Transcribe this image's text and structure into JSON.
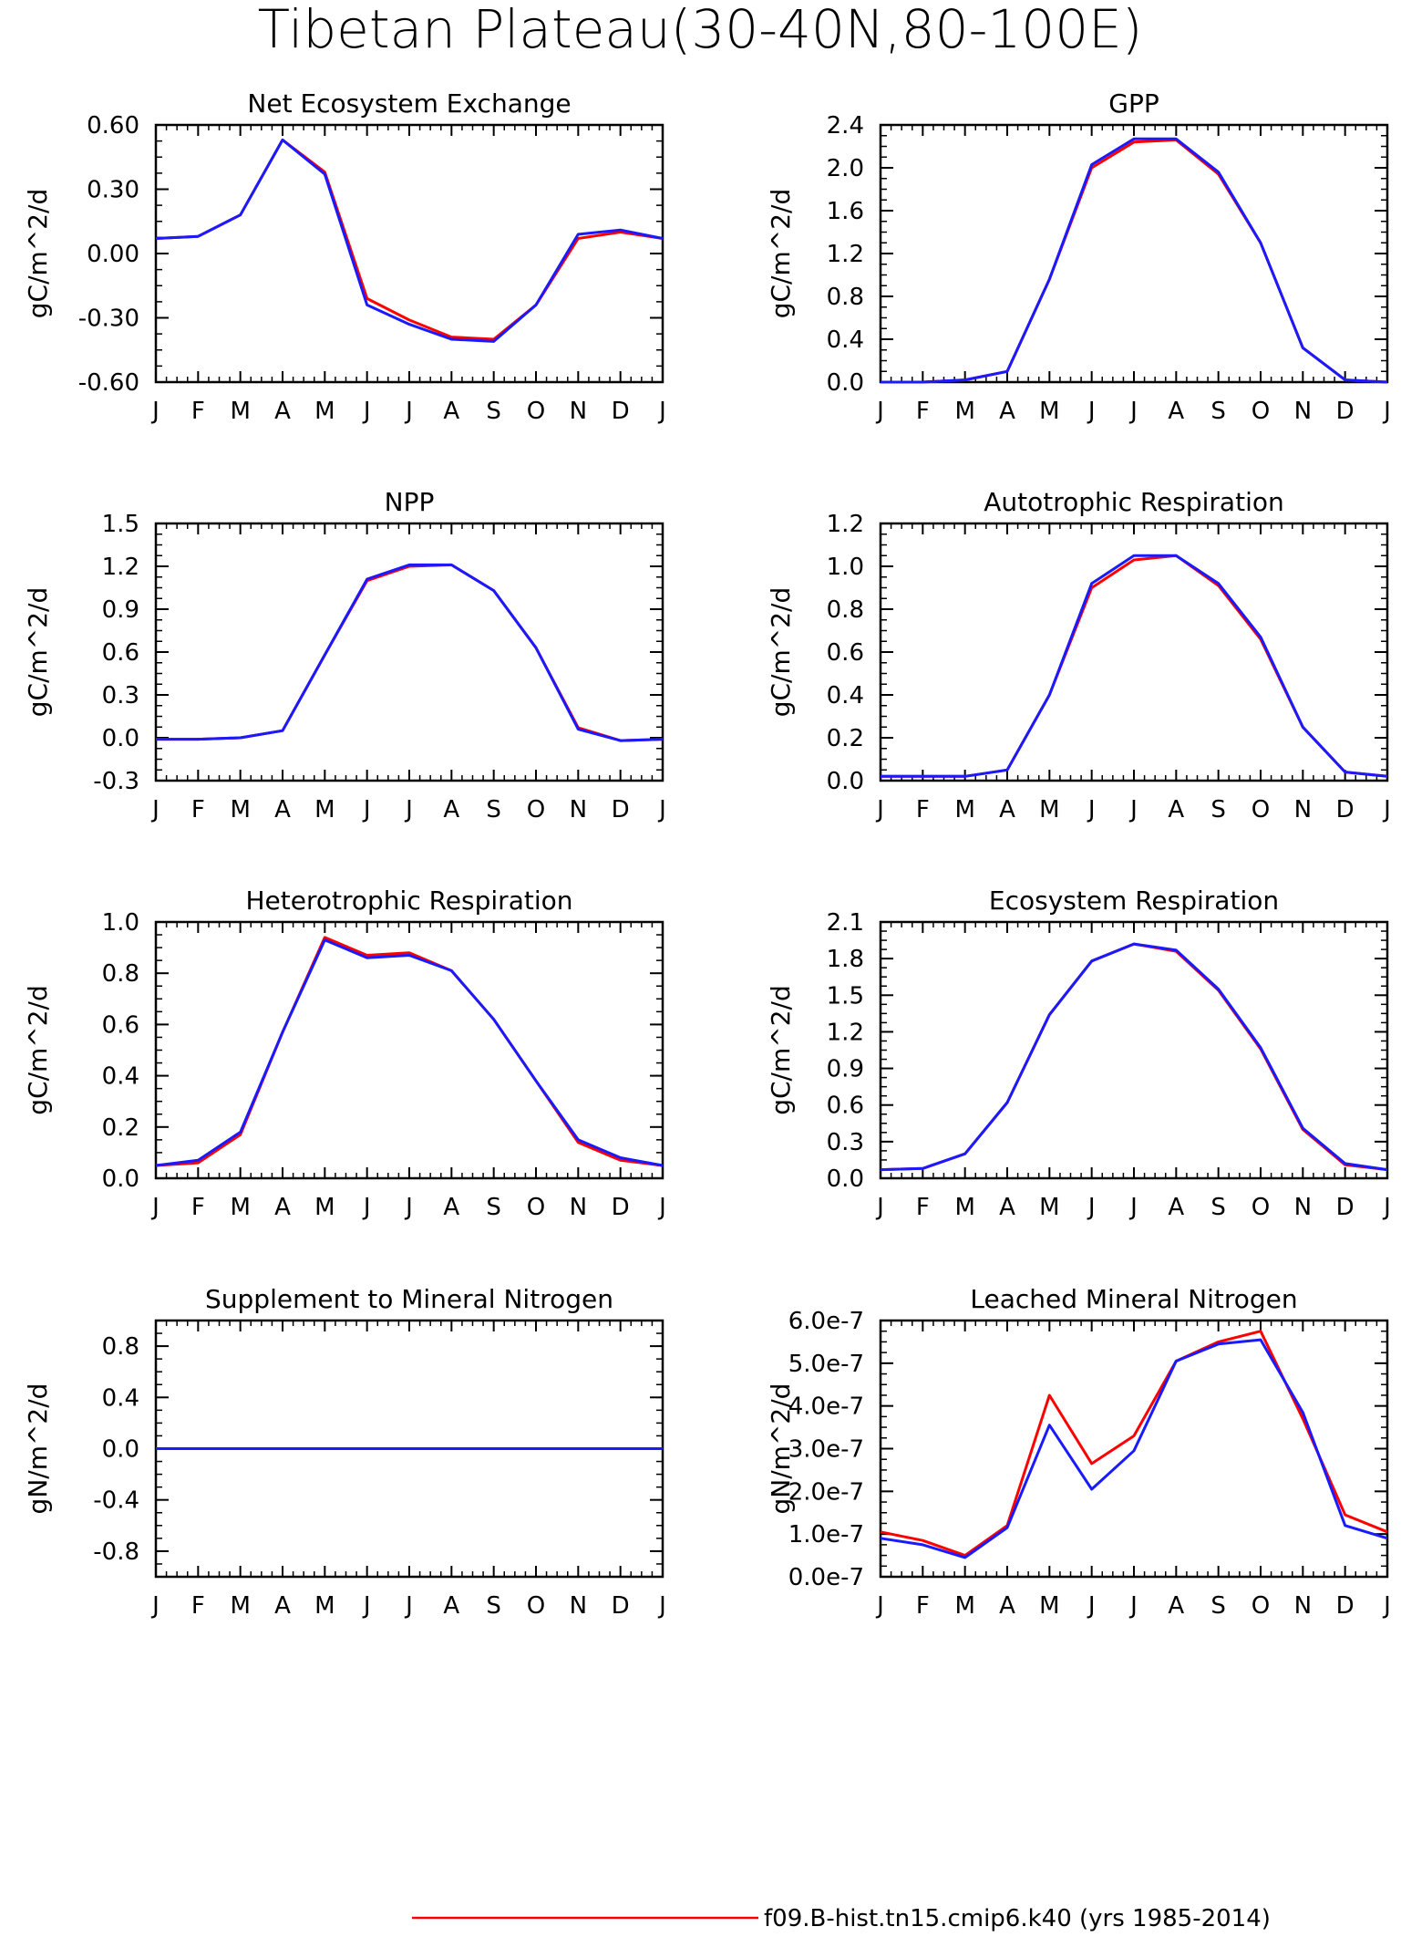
{
  "title": "Tibetan Plateau(30-40N,80-100E)",
  "months": [
    "J",
    "F",
    "M",
    "A",
    "M",
    "J",
    "J",
    "A",
    "S",
    "O",
    "N",
    "D",
    "J"
  ],
  "colors": {
    "red": "#ff0000",
    "blue": "#1a1aff",
    "axis": "#000000"
  },
  "legend": {
    "label": "f09.B-hist.tn15.cmip6.k40 (yrs 1985-2014)",
    "color": "#ff0000"
  },
  "chart_data": [
    {
      "type": "line",
      "title": "Net Ecosystem Exchange",
      "ylabel": "gC/m^2/d",
      "ylim": [
        -0.6,
        0.6
      ],
      "yticks": [
        "0.60",
        "0.30",
        "0.00",
        "-0.30",
        "-0.60"
      ],
      "ytick_values": [
        0.6,
        0.3,
        0.0,
        -0.3,
        -0.6
      ],
      "series": [
        {
          "color": "#ff0000",
          "values": [
            0.07,
            0.08,
            0.18,
            0.53,
            0.38,
            -0.21,
            -0.31,
            -0.39,
            -0.4,
            -0.24,
            0.07,
            0.1,
            0.07
          ]
        },
        {
          "color": "#1a1aff",
          "values": [
            0.07,
            0.08,
            0.18,
            0.53,
            0.37,
            -0.24,
            -0.33,
            -0.4,
            -0.41,
            -0.24,
            0.09,
            0.11,
            0.07
          ]
        }
      ]
    },
    {
      "type": "line",
      "title": "GPP",
      "ylabel": "gC/m^2/d",
      "ylim": [
        0.0,
        2.4
      ],
      "yticks": [
        "2.4",
        "2.0",
        "1.6",
        "1.2",
        "0.8",
        "0.4",
        "0.0"
      ],
      "ytick_values": [
        2.4,
        2.0,
        1.6,
        1.2,
        0.8,
        0.4,
        0.0
      ],
      "series": [
        {
          "color": "#ff0000",
          "values": [
            0.0,
            0.0,
            0.02,
            0.1,
            0.96,
            2.0,
            2.24,
            2.26,
            1.94,
            1.3,
            0.32,
            0.02,
            0.0
          ]
        },
        {
          "color": "#1a1aff",
          "values": [
            0.0,
            0.0,
            0.02,
            0.1,
            0.96,
            2.03,
            2.27,
            2.27,
            1.96,
            1.3,
            0.32,
            0.02,
            0.0
          ]
        }
      ]
    },
    {
      "type": "line",
      "title": "NPP",
      "ylabel": "gC/m^2/d",
      "ylim": [
        -0.3,
        1.5
      ],
      "yticks": [
        "1.5",
        "1.2",
        "0.9",
        "0.6",
        "0.3",
        "0.0",
        "-0.3"
      ],
      "ytick_values": [
        1.5,
        1.2,
        0.9,
        0.6,
        0.3,
        0.0,
        -0.3
      ],
      "series": [
        {
          "color": "#ff0000",
          "values": [
            -0.01,
            -0.01,
            0.0,
            0.05,
            0.58,
            1.1,
            1.2,
            1.21,
            1.03,
            0.63,
            0.07,
            -0.02,
            -0.01
          ]
        },
        {
          "color": "#1a1aff",
          "values": [
            -0.01,
            -0.01,
            0.0,
            0.05,
            0.58,
            1.11,
            1.21,
            1.21,
            1.03,
            0.63,
            0.06,
            -0.02,
            -0.01
          ]
        }
      ]
    },
    {
      "type": "line",
      "title": "Autotrophic Respiration",
      "ylabel": "gC/m^2/d",
      "ylim": [
        0.0,
        1.2
      ],
      "yticks": [
        "1.2",
        "1.0",
        "0.8",
        "0.6",
        "0.4",
        "0.2",
        "0.0"
      ],
      "ytick_values": [
        1.2,
        1.0,
        0.8,
        0.6,
        0.4,
        0.2,
        0.0
      ],
      "series": [
        {
          "color": "#ff0000",
          "values": [
            0.02,
            0.02,
            0.02,
            0.05,
            0.4,
            0.9,
            1.03,
            1.05,
            0.91,
            0.66,
            0.25,
            0.04,
            0.02
          ]
        },
        {
          "color": "#1a1aff",
          "values": [
            0.02,
            0.02,
            0.02,
            0.05,
            0.4,
            0.92,
            1.05,
            1.05,
            0.92,
            0.67,
            0.25,
            0.04,
            0.02
          ]
        }
      ]
    },
    {
      "type": "line",
      "title": "Heterotrophic Respiration",
      "ylabel": "gC/m^2/d",
      "ylim": [
        0.0,
        1.0
      ],
      "yticks": [
        "1.0",
        "0.8",
        "0.6",
        "0.4",
        "0.2",
        "0.0"
      ],
      "ytick_values": [
        1.0,
        0.8,
        0.6,
        0.4,
        0.2,
        0.0
      ],
      "series": [
        {
          "color": "#ff0000",
          "values": [
            0.05,
            0.06,
            0.17,
            0.57,
            0.94,
            0.87,
            0.88,
            0.81,
            0.62,
            0.38,
            0.14,
            0.07,
            0.05
          ]
        },
        {
          "color": "#1a1aff",
          "values": [
            0.05,
            0.07,
            0.18,
            0.57,
            0.93,
            0.86,
            0.87,
            0.81,
            0.62,
            0.38,
            0.15,
            0.08,
            0.05
          ]
        }
      ]
    },
    {
      "type": "line",
      "title": "Ecosystem Respiration",
      "ylabel": "gC/m^2/d",
      "ylim": [
        0.0,
        2.1
      ],
      "yticks": [
        "2.1",
        "1.8",
        "1.5",
        "1.2",
        "0.9",
        "0.6",
        "0.3",
        "0.0"
      ],
      "ytick_values": [
        2.1,
        1.8,
        1.5,
        1.2,
        0.9,
        0.6,
        0.3,
        0.0
      ],
      "series": [
        {
          "color": "#ff0000",
          "values": [
            0.07,
            0.08,
            0.2,
            0.62,
            1.34,
            1.78,
            1.92,
            1.86,
            1.54,
            1.06,
            0.4,
            0.11,
            0.07
          ]
        },
        {
          "color": "#1a1aff",
          "values": [
            0.07,
            0.08,
            0.2,
            0.62,
            1.34,
            1.78,
            1.92,
            1.87,
            1.55,
            1.07,
            0.41,
            0.12,
            0.07
          ]
        }
      ]
    },
    {
      "type": "line",
      "title": "Supplement to Mineral Nitrogen",
      "ylabel": "gN/m^2/d",
      "ylim": [
        -1.0,
        1.0
      ],
      "yticks": [
        "0.8",
        "0.4",
        "0.0",
        "-0.4",
        "-0.8"
      ],
      "ytick_values": [
        0.8,
        0.4,
        0.0,
        -0.4,
        -0.8
      ],
      "series": [
        {
          "color": "#ff0000",
          "values": [
            0,
            0,
            0,
            0,
            0,
            0,
            0,
            0,
            0,
            0,
            0,
            0,
            0
          ]
        },
        {
          "color": "#1a1aff",
          "values": [
            0,
            0,
            0,
            0,
            0,
            0,
            0,
            0,
            0,
            0,
            0,
            0,
            0
          ]
        }
      ]
    },
    {
      "type": "line",
      "title": "Leached Mineral Nitrogen",
      "ylabel": "gN/m^2/d",
      "ylim": [
        0.0,
        6e-07
      ],
      "yticks": [
        "6.0e-7",
        "5.0e-7",
        "4.0e-7",
        "3.0e-7",
        "2.0e-7",
        "1.0e-7",
        "0.0e-7"
      ],
      "ytick_values": [
        6e-07,
        5e-07,
        4e-07,
        3e-07,
        2e-07,
        1e-07,
        0.0
      ],
      "series": [
        {
          "color": "#ff0000",
          "values": [
            1.05e-07,
            8.5e-08,
            5e-08,
            1.2e-07,
            4.25e-07,
            2.65e-07,
            3.3e-07,
            5.05e-07,
            5.5e-07,
            5.75e-07,
            3.7e-07,
            1.45e-07,
            1.05e-07
          ]
        },
        {
          "color": "#1a1aff",
          "values": [
            9e-08,
            7.5e-08,
            4.5e-08,
            1.15e-07,
            3.55e-07,
            2.05e-07,
            2.95e-07,
            5.05e-07,
            5.45e-07,
            5.55e-07,
            3.85e-07,
            1.2e-07,
            9e-08
          ]
        }
      ]
    }
  ]
}
